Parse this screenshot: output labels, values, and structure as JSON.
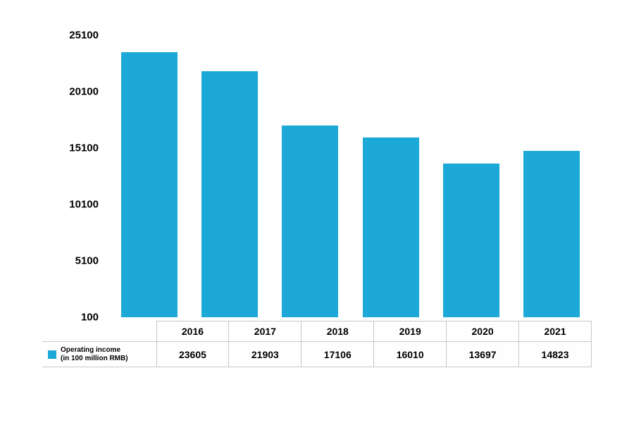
{
  "chart": {
    "type": "bar",
    "categories": [
      "2016",
      "2017",
      "2018",
      "2019",
      "2020",
      "2021"
    ],
    "values": [
      23605,
      21903,
      17106,
      16010,
      13697,
      14823
    ],
    "bar_color": "#1ca9d8",
    "y_axis": {
      "min": 100,
      "max": 25100,
      "ticks": [
        100,
        5100,
        10100,
        15100,
        20100,
        25100
      ],
      "tick_labels": [
        "100",
        "5100",
        "10100",
        "15100",
        "20100",
        "25100"
      ]
    },
    "legend": {
      "label": "Operating income\n(in 100 million RMB)",
      "swatch_color": "#1ca9d8"
    },
    "value_labels": [
      "23605",
      "21903",
      "17106",
      "16010",
      "13697",
      "14823"
    ],
    "background_color": "#ffffff",
    "grid_color": "#c8c8c8",
    "tick_font_size": 15,
    "tick_font_weight": "bold",
    "table_font_size": 14,
    "bar_width_ratio": 0.7
  }
}
